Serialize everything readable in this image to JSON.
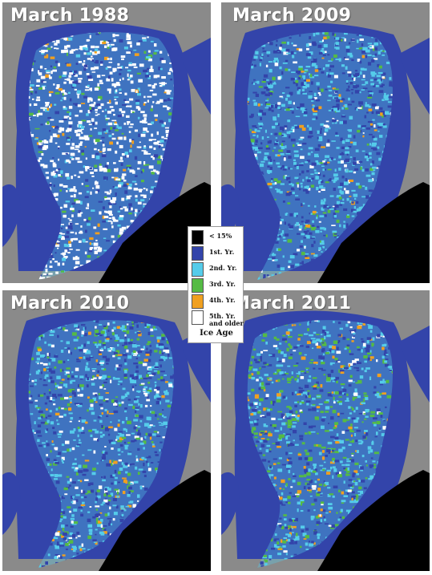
{
  "maps": [
    {
      "title": "March 1988",
      "mix": {
        "blue": 0.14,
        "cyan": 0.1,
        "green": 0.06,
        "orange": 0.06,
        "white": 0.64
      }
    },
    {
      "title": "March 2009",
      "mix": {
        "blue": 0.35,
        "cyan": 0.45,
        "green": 0.08,
        "orange": 0.04,
        "white": 0.08
      }
    },
    {
      "title": "March 2010",
      "mix": {
        "blue": 0.28,
        "cyan": 0.4,
        "green": 0.14,
        "orange": 0.06,
        "white": 0.12
      }
    },
    {
      "title": "March 2011",
      "mix": {
        "blue": 0.25,
        "cyan": 0.33,
        "green": 0.28,
        "orange": 0.09,
        "white": 0.05
      }
    }
  ],
  "legend": {
    "title": "Ice Age",
    "entries": [
      {
        "label": "< 15%",
        "color": "#000000"
      },
      {
        "label": "1st. Yr.",
        "color": "#3344aa"
      },
      {
        "label": "2nd. Yr.",
        "color": "#55ccea"
      },
      {
        "label": "3rd. Yr.",
        "color": "#55bb44"
      },
      {
        "label": "4th. Yr.",
        "color": "#f0a020"
      },
      {
        "label": "5th. Yr. and older",
        "color": "#ffffff"
      }
    ]
  },
  "colors": {
    "land": "#8a8a8a",
    "ocean": "#3344aa",
    "open_water": "#000000"
  }
}
